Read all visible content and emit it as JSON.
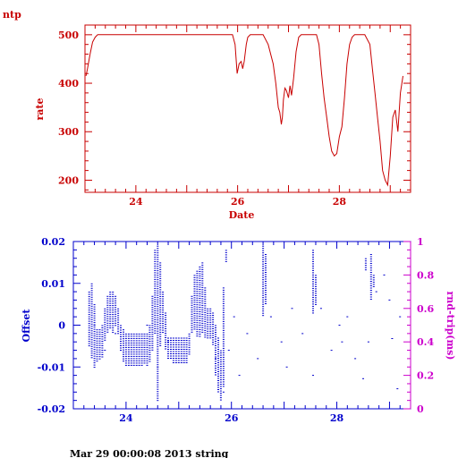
{
  "app_title": "ntp",
  "footer": "Mar 29 00:00:08 2013 string",
  "colors": {
    "rate": "#c80000",
    "offset": "#0000cc",
    "rtt": "#cc00cc"
  },
  "chart_data": [
    {
      "type": "line",
      "title": "",
      "xlabel": "Date",
      "ylabel": "rate",
      "xlim": [
        23.0,
        29.4
      ],
      "ylim": [
        175,
        520
      ],
      "xticks": [
        "24",
        "26",
        "28"
      ],
      "yticks": [
        "200",
        "300",
        "400",
        "500"
      ],
      "series": [
        {
          "x": [
            23.02,
            23.05,
            23.1,
            23.15,
            23.2,
            23.25,
            23.3,
            23.4,
            23.6,
            24,
            24.5,
            25,
            25.5,
            25.9,
            25.95,
            25.99,
            26.03,
            26.07,
            26.1,
            26.13,
            26.17,
            26.2,
            26.25,
            26.3,
            26.4,
            26.5,
            26.6,
            26.7,
            26.75,
            26.8,
            26.83,
            26.86,
            26.88,
            26.9,
            26.93,
            26.96,
            27,
            27.03,
            27.06,
            27.1,
            27.15,
            27.2,
            27.25,
            27.35,
            27.45,
            27.55,
            27.6,
            27.65,
            27.7,
            27.75,
            27.8,
            27.85,
            27.9,
            27.95,
            28,
            28.05,
            28.1,
            28.15,
            28.2,
            28.25,
            28.3,
            28.35,
            28.4,
            28.5,
            28.6,
            28.65,
            28.7,
            28.75,
            28.8,
            28.85,
            28.9,
            28.95,
            29,
            29.05,
            29.1,
            29.15,
            29.2,
            29.25
          ],
          "y": [
            415,
            430,
            460,
            485,
            495,
            500,
            500,
            500,
            500,
            500,
            500,
            500,
            500,
            500,
            480,
            420,
            440,
            445,
            430,
            445,
            480,
            495,
            500,
            500,
            500,
            500,
            480,
            440,
            400,
            350,
            340,
            315,
            330,
            365,
            390,
            385,
            370,
            395,
            375,
            410,
            465,
            495,
            500,
            500,
            500,
            500,
            480,
            420,
            370,
            330,
            290,
            260,
            250,
            255,
            290,
            310,
            370,
            440,
            480,
            495,
            500,
            500,
            500,
            500,
            480,
            430,
            380,
            330,
            280,
            220,
            200,
            190,
            250,
            330,
            345,
            300,
            380,
            415
          ]
        }
      ]
    },
    {
      "type": "scatter",
      "title": "",
      "xlabel": "",
      "ylabel": "Offset",
      "y2label": "rnd-trip(ms)",
      "xlim": [
        23.0,
        29.4
      ],
      "ylim": [
        -0.02,
        0.02
      ],
      "y2lim": [
        0,
        1
      ],
      "xticks": [
        "24",
        "26",
        "28"
      ],
      "yticks": [
        "-0.02",
        "-0.01",
        "0",
        "0.01",
        "0.02"
      ],
      "y2ticks": [
        "0",
        "0.2",
        "0.4",
        "0.6",
        "0.8",
        "1"
      ],
      "series": [
        {
          "name": "",
          "axis": "left",
          "columns": [
            {
              "x": 23.3,
              "y": [
                -0.005,
                0.008
              ]
            },
            {
              "x": 23.35,
              "y": [
                -0.008,
                0.01
              ]
            },
            {
              "x": 23.4,
              "y": [
                -0.01,
                0.005
              ]
            },
            {
              "x": 23.45,
              "y": [
                -0.009,
                -0.001
              ]
            },
            {
              "x": 23.5,
              "y": [
                -0.008,
                -0.001
              ]
            },
            {
              "x": 23.55,
              "y": [
                -0.008,
                0.0
              ]
            },
            {
              "x": 23.6,
              "y": [
                -0.004,
                0.004
              ]
            },
            {
              "x": 23.65,
              "y": [
                -0.002,
                0.007
              ]
            },
            {
              "x": 23.7,
              "y": [
                -0.001,
                0.008
              ]
            },
            {
              "x": 23.75,
              "y": [
                -0.002,
                0.008
              ]
            },
            {
              "x": 23.8,
              "y": [
                0.0,
                0.007
              ]
            },
            {
              "x": 23.85,
              "y": [
                -0.002,
                0.004
              ]
            },
            {
              "x": 23.9,
              "y": [
                -0.006,
                0.0
              ]
            },
            {
              "x": 23.95,
              "y": [
                -0.009,
                -0.001
              ]
            },
            {
              "x": 24.0,
              "y": [
                -0.01,
                -0.002
              ]
            },
            {
              "x": 24.05,
              "y": [
                -0.01,
                -0.002
              ]
            },
            {
              "x": 24.1,
              "y": [
                -0.01,
                -0.002
              ]
            },
            {
              "x": 24.15,
              "y": [
                -0.01,
                -0.002
              ]
            },
            {
              "x": 24.2,
              "y": [
                -0.01,
                -0.002
              ]
            },
            {
              "x": 24.25,
              "y": [
                -0.01,
                -0.002
              ]
            },
            {
              "x": 24.3,
              "y": [
                -0.01,
                -0.002
              ]
            },
            {
              "x": 24.35,
              "y": [
                -0.009,
                -0.002
              ]
            },
            {
              "x": 24.4,
              "y": [
                -0.01,
                -0.002
              ]
            },
            {
              "x": 24.45,
              "y": [
                -0.009,
                0.0
              ]
            },
            {
              "x": 24.5,
              "y": [
                -0.006,
                0.007
              ]
            },
            {
              "x": 24.55,
              "y": [
                -0.002,
                0.018
              ]
            },
            {
              "x": 24.6,
              "y": [
                -0.018,
                0.019
              ]
            },
            {
              "x": 24.65,
              "y": [
                -0.005,
                0.015
              ]
            },
            {
              "x": 24.7,
              "y": [
                -0.002,
                0.008
              ]
            },
            {
              "x": 24.75,
              "y": [
                -0.006,
                0.003
              ]
            },
            {
              "x": 24.8,
              "y": [
                -0.008,
                -0.003
              ]
            },
            {
              "x": 24.85,
              "y": [
                -0.008,
                -0.003
              ]
            },
            {
              "x": 24.9,
              "y": [
                -0.009,
                -0.003
              ]
            },
            {
              "x": 24.95,
              "y": [
                -0.009,
                -0.003
              ]
            },
            {
              "x": 25.0,
              "y": [
                -0.009,
                -0.003
              ]
            },
            {
              "x": 25.05,
              "y": [
                -0.009,
                -0.003
              ]
            },
            {
              "x": 25.1,
              "y": [
                -0.009,
                -0.003
              ]
            },
            {
              "x": 25.15,
              "y": [
                -0.009,
                -0.003
              ]
            },
            {
              "x": 25.2,
              "y": [
                -0.007,
                -0.002
              ]
            },
            {
              "x": 25.25,
              "y": [
                -0.002,
                0.007
              ]
            },
            {
              "x": 25.3,
              "y": [
                -0.001,
                0.012
              ]
            },
            {
              "x": 25.35,
              "y": [
                -0.003,
                0.013
              ]
            },
            {
              "x": 25.4,
              "y": [
                -0.003,
                0.014
              ]
            },
            {
              "x": 25.45,
              "y": [
                -0.002,
                0.015
              ]
            },
            {
              "x": 25.5,
              "y": [
                -0.003,
                0.009
              ]
            },
            {
              "x": 25.55,
              "y": [
                -0.003,
                0.004
              ]
            },
            {
              "x": 25.6,
              "y": [
                -0.003,
                0.004
              ]
            },
            {
              "x": 25.65,
              "y": [
                -0.005,
                0.003
              ]
            },
            {
              "x": 25.7,
              "y": [
                -0.012,
                0.0
              ]
            },
            {
              "x": 25.75,
              "y": [
                -0.016,
                -0.003
              ]
            },
            {
              "x": 25.8,
              "y": [
                -0.018,
                -0.006
              ]
            },
            {
              "x": 25.85,
              "y": [
                -0.015,
                0.009
              ]
            },
            {
              "x": 25.9,
              "y": [
                0.015,
                0.018
              ]
            },
            {
              "x": 26.6,
              "y": [
                0.002,
                0.019
              ]
            },
            {
              "x": 26.65,
              "y": [
                0.005,
                0.017
              ]
            },
            {
              "x": 27.55,
              "y": [
                0.003,
                0.018
              ]
            },
            {
              "x": 27.6,
              "y": [
                0.005,
                0.012
              ]
            },
            {
              "x": 28.55,
              "y": [
                0.013,
                0.016
              ]
            },
            {
              "x": 28.65,
              "y": [
                0.006,
                0.017
              ]
            },
            {
              "x": 28.7,
              "y": [
                0.009,
                0.012
              ]
            }
          ]
        },
        {
          "name": "",
          "axis": "right",
          "points": [
            [
              23.4,
              0.5
            ],
            [
              23.6,
              0.35
            ],
            [
              23.8,
              0.45
            ],
            [
              24.4,
              0.5
            ],
            [
              24.6,
              0.25
            ],
            [
              24.8,
              0.4
            ],
            [
              25.4,
              0.5
            ],
            [
              25.7,
              0.3
            ],
            [
              25.85,
              0.1
            ],
            [
              25.95,
              0.35
            ],
            [
              26.05,
              0.55
            ],
            [
              26.15,
              0.2
            ],
            [
              26.3,
              0.45
            ],
            [
              26.5,
              0.3
            ],
            [
              26.75,
              0.55
            ],
            [
              26.95,
              0.4
            ],
            [
              27.05,
              0.25
            ],
            [
              27.15,
              0.6
            ],
            [
              27.35,
              0.45
            ],
            [
              27.55,
              0.2
            ],
            [
              27.7,
              0.6
            ],
            [
              27.9,
              0.35
            ],
            [
              28.05,
              0.5
            ],
            [
              28.1,
              0.4
            ],
            [
              28.2,
              0.55
            ],
            [
              28.35,
              0.3
            ],
            [
              28.5,
              0.18
            ],
            [
              28.6,
              0.4
            ],
            [
              28.75,
              0.7
            ],
            [
              28.9,
              0.8
            ],
            [
              29.0,
              0.65
            ],
            [
              29.05,
              0.42
            ],
            [
              29.15,
              0.12
            ],
            [
              29.2,
              0.55
            ]
          ]
        }
      ]
    }
  ]
}
